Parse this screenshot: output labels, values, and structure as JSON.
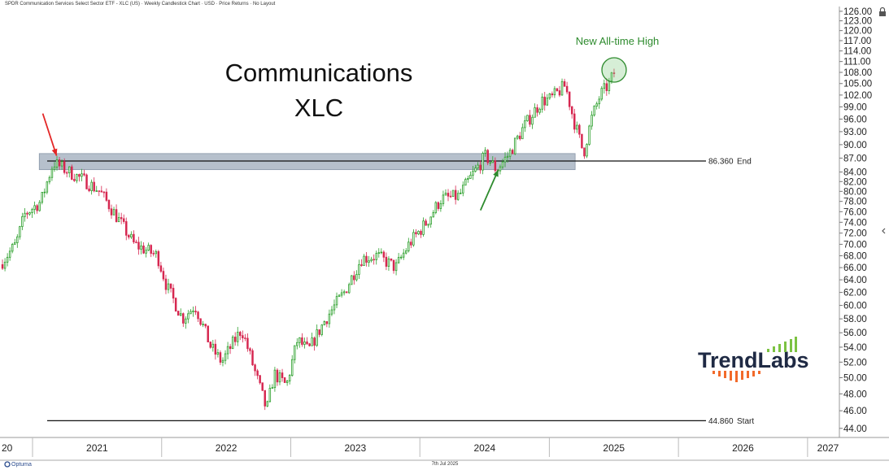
{
  "header": {
    "title": "SPDR Communication Services Select Sector ETF - XLC (US) · Weekly Candlestick Chart · USD · Price Returns · No Layout"
  },
  "footer": {
    "brand": "Optuma",
    "date": "7th Jul 2025"
  },
  "colors": {
    "up": "#2ca02c",
    "down": "#d62750",
    "zone": "#9aa8b8",
    "red_arrow": "#e32626",
    "green_arrow": "#2e8b2e",
    "ath": "#2e8b2e"
  },
  "icons": {
    "lock": "lock-icon",
    "collapse": "chevron-left-icon"
  },
  "chart_data": {
    "type": "candlestick",
    "title_lines": [
      "Communications",
      "XLC"
    ],
    "frequency": "weekly",
    "x_ticks": [
      "20",
      "2021",
      "2022",
      "2023",
      "2024",
      "2025",
      "2026",
      "2027"
    ],
    "y_ticks": [
      "44.00",
      "46.00",
      "48.00",
      "50.00",
      "52.00",
      "54.00",
      "56.00",
      "58.00",
      "60.00",
      "62.00",
      "64.00",
      "66.00",
      "68.00",
      "70.00",
      "72.00",
      "74.00",
      "76.00",
      "78.00",
      "80.00",
      "82.00",
      "84.00",
      "87.00",
      "90.00",
      "93.00",
      "96.00",
      "99.00",
      "102.00",
      "105.00",
      "108.00",
      "111.00",
      "114.00",
      "117.00",
      "120.00",
      "123.00",
      "126.00"
    ],
    "ylim": [
      43,
      127
    ],
    "y_scale": "log",
    "xlim": [
      "2020-10-01",
      "2027-04-01"
    ],
    "horizontal_lines": [
      {
        "value": 86.36,
        "value_label": "86.360",
        "label": "End"
      },
      {
        "value": 44.86,
        "value_label": "44.860",
        "label": "Start"
      }
    ],
    "resistance_zone": {
      "low": 84.5,
      "high": 88.0,
      "from": "2021-01-20",
      "to": "2025-03-15"
    },
    "annotations": [
      {
        "text": "New All-time High",
        "color": "green",
        "circle_near": {
          "date": "2025-06-25",
          "value": 108
        }
      }
    ],
    "arrows": [
      {
        "color": "red",
        "points_to": {
          "date": "2021-03-10",
          "value": 87.5
        }
      },
      {
        "color": "green",
        "points_to": {
          "date": "2024-08-10",
          "value": 84.5
        }
      }
    ],
    "anchors": [
      [
        "2020-10-01",
        66.5
      ],
      [
        "2020-10-20",
        68.0
      ],
      [
        "2020-11-15",
        70.0
      ],
      [
        "2020-12-10",
        75.5
      ],
      [
        "2021-01-25",
        78.0
      ],
      [
        "2021-03-01",
        86.0
      ],
      [
        "2021-04-15",
        84.0
      ],
      [
        "2021-06-01",
        82.0
      ],
      [
        "2021-07-10",
        80.0
      ],
      [
        "2021-09-01",
        74.5
      ],
      [
        "2021-10-15",
        70.0
      ],
      [
        "2021-12-20",
        68.0
      ],
      [
        "2022-01-15",
        63.0
      ],
      [
        "2022-03-01",
        58.0
      ],
      [
        "2022-04-05",
        60.0
      ],
      [
        "2022-05-20",
        54.0
      ],
      [
        "2022-06-20",
        52.0
      ],
      [
        "2022-08-15",
        56.5
      ],
      [
        "2022-09-20",
        51.0
      ],
      [
        "2022-10-25",
        46.0
      ],
      [
        "2022-11-15",
        50.5
      ],
      [
        "2022-12-20",
        49.0
      ],
      [
        "2023-01-20",
        55.0
      ],
      [
        "2023-02-20",
        53.5
      ],
      [
        "2023-04-10",
        58.0
      ],
      [
        "2023-06-01",
        62.0
      ],
      [
        "2023-07-20",
        67.5
      ],
      [
        "2023-09-01",
        68.0
      ],
      [
        "2023-10-25",
        66.0
      ],
      [
        "2023-12-01",
        70.0
      ],
      [
        "2024-01-20",
        74.0
      ],
      [
        "2024-03-01",
        78.5
      ],
      [
        "2024-04-20",
        79.0
      ],
      [
        "2024-05-25",
        83.0
      ],
      [
        "2024-07-05",
        87.5
      ],
      [
        "2024-08-05",
        84.5
      ],
      [
        "2024-09-10",
        88.0
      ],
      [
        "2024-10-20",
        94.0
      ],
      [
        "2024-12-10",
        100.5
      ],
      [
        "2025-01-05",
        101.0
      ],
      [
        "2025-02-15",
        104.5
      ],
      [
        "2025-03-10",
        96.0
      ],
      [
        "2025-04-08",
        88.0
      ],
      [
        "2025-04-30",
        96.0
      ],
      [
        "2025-05-25",
        102.0
      ],
      [
        "2025-06-20",
        105.0
      ],
      [
        "2025-07-03",
        108.0
      ]
    ]
  }
}
